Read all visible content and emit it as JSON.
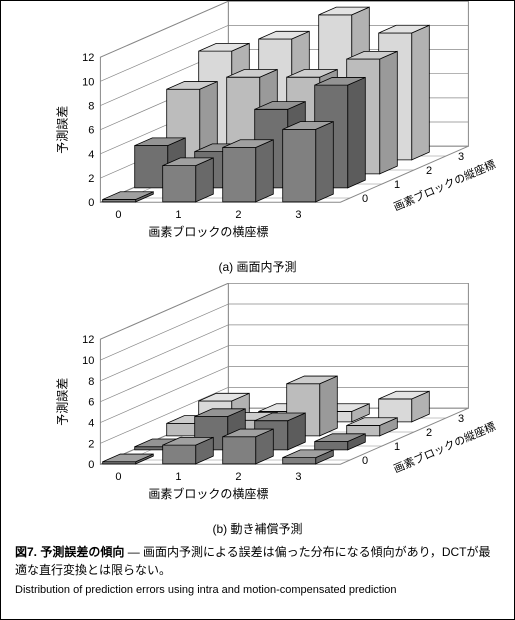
{
  "chartA": {
    "type": "3d-bar",
    "subcaption": "(a) 画面内予測",
    "zlabel": "予測誤差",
    "xlabel": "画素ブロックの横座標",
    "depthlabel": "画素ブロックの縦座標",
    "x_categories": [
      0,
      1,
      2,
      3
    ],
    "y_categories": [
      0,
      1,
      2,
      3
    ],
    "zlim": [
      0,
      12
    ],
    "ztick_step": 2,
    "values": [
      [
        0.2,
        3.5,
        7.0,
        9.0
      ],
      [
        3.0,
        3.0,
        8.0,
        10.0
      ],
      [
        4.5,
        6.5,
        8.0,
        12.0
      ],
      [
        6.0,
        8.5,
        9.5,
        10.5
      ]
    ],
    "row_colors": [
      "#808080",
      "#707070",
      "#bcbcbc",
      "#d9d9d9"
    ],
    "bar_border": "#000000",
    "top_lighten": 0.25,
    "side_darken": 0.18,
    "grid_color": "#888888",
    "floor_color": "#ffffff",
    "font_size_ticks": 11,
    "font_size_labels": 12,
    "bar_width": 0.55,
    "bar_depth": 0.55
  },
  "chartB": {
    "type": "3d-bar",
    "subcaption": "(b) 動き補償予測",
    "zlabel": "予測誤差",
    "xlabel": "画素ブロックの横座標",
    "depthlabel": "画素ブロックの縦座標",
    "x_categories": [
      0,
      1,
      2,
      3
    ],
    "y_categories": [
      0,
      1,
      2,
      3
    ],
    "zlim": [
      0,
      12
    ],
    "ztick_step": 2,
    "values": [
      [
        0.2,
        0.3,
        1.2,
        2.0
      ],
      [
        1.8,
        3.2,
        1.5,
        1.0
      ],
      [
        2.6,
        2.8,
        5.0,
        1.0
      ],
      [
        0.6,
        0.8,
        1.0,
        2.2
      ]
    ],
    "row_colors": [
      "#808080",
      "#707070",
      "#bcbcbc",
      "#d9d9d9"
    ],
    "bar_border": "#000000",
    "top_lighten": 0.25,
    "side_darken": 0.18,
    "grid_color": "#888888",
    "floor_color": "#ffffff",
    "font_size_ticks": 11,
    "font_size_labels": 12,
    "bar_width": 0.55,
    "bar_depth": 0.55
  },
  "caption": {
    "fig_label": "図7.",
    "title_jp": "予測誤差の傾向",
    "body_jp": " ― 画面内予測による誤差は偏った分布になる傾向があり，DCTが最適な直行変換とは限らない。",
    "en": "Distribution of prediction errors using intra and motion-compensated prediction"
  }
}
